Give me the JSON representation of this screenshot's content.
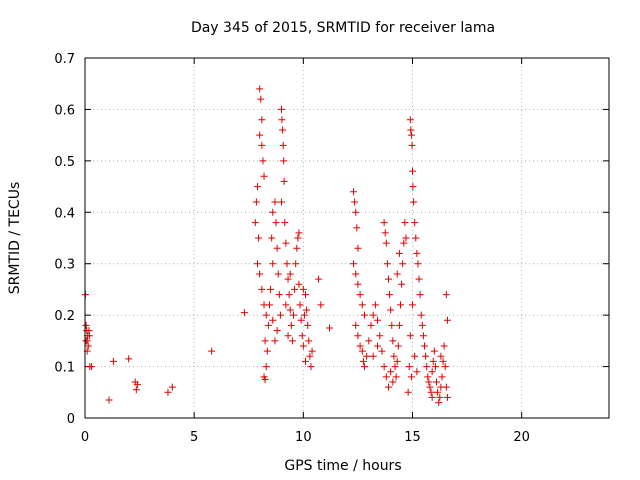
{
  "chart_data": {
    "type": "scatter",
    "title": "Day 345 of 2015, SRMTID for receiver lama",
    "xlabel": "GPS time / hours",
    "ylabel": "SRMTID / TECUs",
    "xlim": [
      0,
      24
    ],
    "ylim": [
      0,
      0.7
    ],
    "x_ticks": [
      0,
      5,
      10,
      15,
      20
    ],
    "x_tick_labels": [
      "0",
      "5",
      "10",
      "15",
      "20"
    ],
    "y_ticks": [
      0,
      0.1,
      0.2,
      0.3,
      0.4,
      0.5,
      0.6,
      0.7
    ],
    "y_tick_labels": [
      "0",
      "0.1",
      "0.2",
      "0.3",
      "0.4",
      "0.5",
      "0.6",
      "0.7"
    ],
    "grid": true,
    "marker": "+",
    "color": "#e00000",
    "series": [
      {
        "name": "lama",
        "points": [
          [
            0.02,
            0.24
          ],
          [
            0.05,
            0.18
          ],
          [
            0.08,
            0.17
          ],
          [
            0.1,
            0.15
          ],
          [
            0.12,
            0.16
          ],
          [
            0.15,
            0.14
          ],
          [
            0.18,
            0.17
          ],
          [
            0.2,
            0.16
          ],
          [
            0.05,
            0.15
          ],
          [
            0.1,
            0.13
          ],
          [
            0.22,
            0.1
          ],
          [
            0.3,
            0.1
          ],
          [
            1.1,
            0.035
          ],
          [
            1.3,
            0.11
          ],
          [
            2.0,
            0.115
          ],
          [
            2.3,
            0.07
          ],
          [
            2.35,
            0.055
          ],
          [
            2.4,
            0.065
          ],
          [
            3.8,
            0.05
          ],
          [
            4.0,
            0.06
          ],
          [
            5.8,
            0.13
          ],
          [
            7.3,
            0.205
          ],
          [
            8.2,
            0.08
          ],
          [
            8.25,
            0.075
          ],
          [
            7.8,
            0.38
          ],
          [
            7.85,
            0.42
          ],
          [
            7.9,
            0.45
          ],
          [
            7.95,
            0.35
          ],
          [
            8.0,
            0.64
          ],
          [
            8.05,
            0.62
          ],
          [
            8.1,
            0.58
          ],
          [
            8.0,
            0.55
          ],
          [
            8.1,
            0.53
          ],
          [
            8.15,
            0.5
          ],
          [
            8.2,
            0.47
          ],
          [
            7.9,
            0.3
          ],
          [
            8.0,
            0.28
          ],
          [
            8.1,
            0.25
          ],
          [
            8.2,
            0.22
          ],
          [
            8.3,
            0.2
          ],
          [
            8.25,
            0.15
          ],
          [
            8.35,
            0.13
          ],
          [
            8.3,
            0.1
          ],
          [
            8.4,
            0.18
          ],
          [
            8.5,
            0.25
          ],
          [
            8.6,
            0.3
          ],
          [
            8.55,
            0.35
          ],
          [
            8.6,
            0.4
          ],
          [
            8.7,
            0.42
          ],
          [
            8.75,
            0.38
          ],
          [
            8.8,
            0.33
          ],
          [
            8.85,
            0.28
          ],
          [
            8.9,
            0.24
          ],
          [
            8.95,
            0.2
          ],
          [
            8.8,
            0.17
          ],
          [
            8.7,
            0.15
          ],
          [
            8.6,
            0.19
          ],
          [
            8.45,
            0.22
          ],
          [
            9.0,
            0.6
          ],
          [
            9.02,
            0.58
          ],
          [
            9.05,
            0.56
          ],
          [
            9.08,
            0.53
          ],
          [
            9.1,
            0.5
          ],
          [
            9.12,
            0.46
          ],
          [
            9.0,
            0.42
          ],
          [
            9.15,
            0.38
          ],
          [
            9.2,
            0.34
          ],
          [
            9.25,
            0.3
          ],
          [
            9.3,
            0.27
          ],
          [
            9.35,
            0.24
          ],
          [
            9.4,
            0.21
          ],
          [
            9.45,
            0.18
          ],
          [
            9.5,
            0.15
          ],
          [
            9.55,
            0.2
          ],
          [
            9.6,
            0.25
          ],
          [
            9.65,
            0.3
          ],
          [
            9.7,
            0.33
          ],
          [
            9.75,
            0.35
          ],
          [
            9.8,
            0.36
          ],
          [
            9.2,
            0.22
          ],
          [
            9.3,
            0.16
          ],
          [
            9.4,
            0.28
          ],
          [
            9.8,
            0.26
          ],
          [
            9.85,
            0.22
          ],
          [
            9.9,
            0.19
          ],
          [
            9.95,
            0.16
          ],
          [
            10.0,
            0.14
          ],
          [
            10.05,
            0.2
          ],
          [
            10.1,
            0.24
          ],
          [
            10.15,
            0.21
          ],
          [
            10.2,
            0.18
          ],
          [
            10.25,
            0.15
          ],
          [
            10.3,
            0.12
          ],
          [
            10.35,
            0.1
          ],
          [
            10.4,
            0.13
          ],
          [
            10.0,
            0.25
          ],
          [
            10.1,
            0.11
          ],
          [
            10.7,
            0.27
          ],
          [
            10.8,
            0.22
          ],
          [
            11.2,
            0.175
          ],
          [
            12.3,
            0.44
          ],
          [
            12.35,
            0.42
          ],
          [
            12.4,
            0.4
          ],
          [
            12.45,
            0.37
          ],
          [
            12.5,
            0.33
          ],
          [
            12.3,
            0.3
          ],
          [
            12.4,
            0.28
          ],
          [
            12.5,
            0.26
          ],
          [
            12.6,
            0.24
          ],
          [
            12.7,
            0.22
          ],
          [
            12.8,
            0.2
          ],
          [
            12.4,
            0.18
          ],
          [
            12.5,
            0.16
          ],
          [
            12.6,
            0.14
          ],
          [
            12.7,
            0.13
          ],
          [
            12.75,
            0.11
          ],
          [
            12.8,
            0.1
          ],
          [
            12.9,
            0.12
          ],
          [
            13.0,
            0.15
          ],
          [
            13.1,
            0.18
          ],
          [
            13.2,
            0.2
          ],
          [
            13.3,
            0.22
          ],
          [
            13.4,
            0.19
          ],
          [
            13.5,
            0.16
          ],
          [
            13.6,
            0.13
          ],
          [
            13.7,
            0.1
          ],
          [
            13.8,
            0.08
          ],
          [
            13.9,
            0.06
          ],
          [
            13.2,
            0.12
          ],
          [
            13.4,
            0.14
          ],
          [
            13.7,
            0.38
          ],
          [
            13.75,
            0.36
          ],
          [
            13.8,
            0.34
          ],
          [
            13.85,
            0.3
          ],
          [
            13.9,
            0.27
          ],
          [
            13.95,
            0.24
          ],
          [
            14.0,
            0.21
          ],
          [
            14.05,
            0.18
          ],
          [
            14.1,
            0.15
          ],
          [
            14.15,
            0.12
          ],
          [
            14.2,
            0.1
          ],
          [
            14.25,
            0.08
          ],
          [
            14.3,
            0.11
          ],
          [
            14.35,
            0.14
          ],
          [
            14.4,
            0.18
          ],
          [
            14.45,
            0.22
          ],
          [
            14.5,
            0.26
          ],
          [
            14.55,
            0.3
          ],
          [
            14.6,
            0.34
          ],
          [
            14.65,
            0.38
          ],
          [
            14.7,
            0.35
          ],
          [
            14.4,
            0.32
          ],
          [
            14.3,
            0.28
          ],
          [
            14.0,
            0.09
          ],
          [
            14.1,
            0.07
          ],
          [
            14.9,
            0.58
          ],
          [
            14.92,
            0.56
          ],
          [
            14.95,
            0.55
          ],
          [
            14.98,
            0.53
          ],
          [
            15.0,
            0.48
          ],
          [
            15.02,
            0.45
          ],
          [
            15.05,
            0.42
          ],
          [
            15.1,
            0.38
          ],
          [
            15.15,
            0.35
          ],
          [
            15.2,
            0.32
          ],
          [
            15.25,
            0.3
          ],
          [
            15.3,
            0.27
          ],
          [
            15.35,
            0.24
          ],
          [
            15.4,
            0.2
          ],
          [
            15.45,
            0.18
          ],
          [
            15.5,
            0.16
          ],
          [
            15.0,
            0.22
          ],
          [
            14.9,
            0.16
          ],
          [
            14.85,
            0.1
          ],
          [
            14.8,
            0.05
          ],
          [
            14.95,
            0.08
          ],
          [
            15.1,
            0.12
          ],
          [
            15.2,
            0.09
          ],
          [
            15.55,
            0.14
          ],
          [
            15.6,
            0.12
          ],
          [
            15.65,
            0.1
          ],
          [
            15.7,
            0.08
          ],
          [
            15.75,
            0.07
          ],
          [
            15.8,
            0.06
          ],
          [
            15.85,
            0.05
          ],
          [
            15.9,
            0.09
          ],
          [
            15.95,
            0.11
          ],
          [
            16.0,
            0.13
          ],
          [
            16.05,
            0.1
          ],
          [
            16.1,
            0.07
          ],
          [
            16.15,
            0.05
          ],
          [
            16.2,
            0.03
          ],
          [
            16.25,
            0.04
          ],
          [
            16.3,
            0.06
          ],
          [
            16.35,
            0.08
          ],
          [
            16.4,
            0.11
          ],
          [
            16.45,
            0.14
          ],
          [
            16.5,
            0.1
          ],
          [
            16.55,
            0.06
          ],
          [
            16.6,
            0.04
          ],
          [
            16.55,
            0.24
          ],
          [
            16.6,
            0.19
          ],
          [
            16.3,
            0.12
          ],
          [
            15.9,
            0.04
          ]
        ]
      }
    ]
  }
}
